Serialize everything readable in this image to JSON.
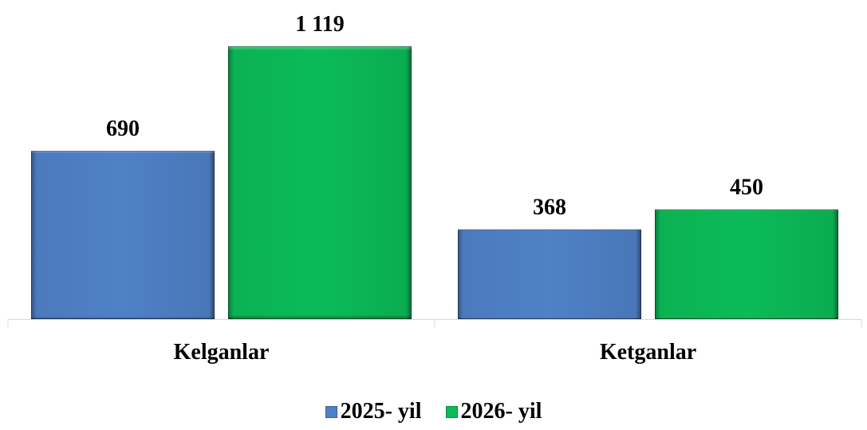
{
  "chart_data": {
    "type": "bar",
    "categories": [
      "Kelganlar",
      "Ketganlar"
    ],
    "series": [
      {
        "name": "2025- yil",
        "values": [
          690,
          368
        ],
        "value_labels": [
          "690",
          "368"
        ],
        "color": "#4F81C7"
      },
      {
        "name": "2026- yil",
        "values": [
          1119,
          450
        ],
        "value_labels": [
          "1 119",
          "450"
        ],
        "color": "#0BBB57"
      }
    ],
    "title": "",
    "xlabel": "",
    "ylabel": "",
    "ylim": [
      0,
      1119
    ],
    "grid": false,
    "legend_position": "bottom"
  }
}
